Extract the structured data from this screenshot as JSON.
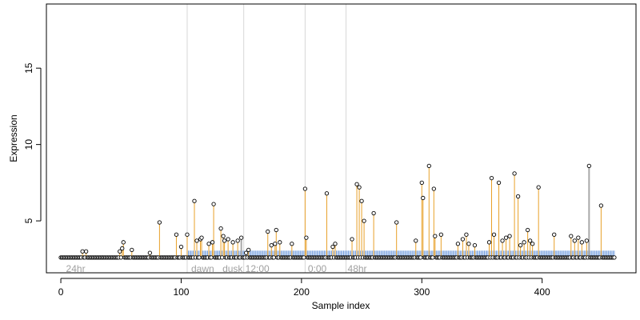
{
  "chart_data": {
    "type": "scatter",
    "title": "",
    "xlabel": "Sample index",
    "ylabel": "Expression",
    "xlim": [
      -12,
      478
    ],
    "ylim": [
      1.6,
      19.2
    ],
    "xticks": [
      "0",
      "100",
      "200",
      "300",
      "400"
    ],
    "yticks": [
      "5",
      "10",
      "15"
    ],
    "baseline": 2.6,
    "region_boundaries": [
      105,
      152,
      203,
      237
    ],
    "region_labels": [
      {
        "x": 3,
        "text": "24hr"
      },
      {
        "x": 107,
        "text": "dawn"
      },
      {
        "x": 133,
        "text": "dusk"
      },
      {
        "x": 152,
        "text": "12:00"
      },
      {
        "x": 204,
        "text": "0:00"
      },
      {
        "x": 237,
        "text": "48hr"
      }
    ],
    "series": [
      {
        "values": [
          [
            18,
            3.0
          ],
          [
            21,
            3.0
          ],
          [
            49,
            3.0
          ],
          [
            51,
            3.2
          ],
          [
            52,
            3.6
          ],
          [
            59,
            3.1
          ],
          [
            74,
            2.9
          ],
          [
            82,
            4.9
          ],
          [
            96,
            4.1
          ],
          [
            100,
            3.3
          ],
          [
            105,
            4.1
          ],
          [
            111,
            6.3
          ],
          [
            113,
            3.7
          ],
          [
            116,
            3.8
          ],
          [
            117,
            3.9
          ],
          [
            123,
            3.5
          ],
          [
            126,
            3.6
          ],
          [
            127,
            6.1
          ],
          [
            133,
            4.5
          ],
          [
            135,
            4.0
          ],
          [
            136,
            3.7
          ],
          [
            139,
            3.8
          ],
          [
            143,
            3.6
          ],
          [
            147,
            3.7
          ],
          [
            150,
            3.9
          ],
          [
            154,
            2.9
          ],
          [
            156,
            3.1
          ],
          [
            172,
            4.3
          ],
          [
            175,
            3.4
          ],
          [
            178,
            3.5
          ],
          [
            179,
            4.4
          ],
          [
            182,
            3.6
          ],
          [
            192,
            3.5
          ],
          [
            203,
            7.1
          ],
          [
            204,
            3.9
          ],
          [
            221,
            6.8
          ],
          [
            226,
            3.3
          ],
          [
            228,
            3.5
          ],
          [
            242,
            3.8
          ],
          [
            246,
            7.4
          ],
          [
            248,
            7.2
          ],
          [
            250,
            6.3
          ],
          [
            252,
            5.0
          ],
          [
            260,
            5.5
          ],
          [
            279,
            4.9
          ],
          [
            295,
            3.7
          ],
          [
            300,
            7.5
          ],
          [
            301,
            6.5
          ],
          [
            306,
            8.6
          ],
          [
            310,
            7.1
          ],
          [
            311,
            4.0
          ],
          [
            316,
            4.1
          ],
          [
            330,
            3.5
          ],
          [
            334,
            3.8
          ],
          [
            337,
            4.1
          ],
          [
            339,
            3.5
          ],
          [
            344,
            3.4
          ],
          [
            356,
            3.6
          ],
          [
            358,
            7.8
          ],
          [
            360,
            4.1
          ],
          [
            364,
            7.5
          ],
          [
            367,
            3.7
          ],
          [
            370,
            3.9
          ],
          [
            373,
            4.0
          ],
          [
            377,
            8.1
          ],
          [
            380,
            6.6
          ],
          [
            382,
            3.4
          ],
          [
            385,
            3.6
          ],
          [
            388,
            4.4
          ],
          [
            390,
            3.7
          ],
          [
            392,
            3.5
          ],
          [
            397,
            7.2
          ],
          [
            410,
            4.1
          ],
          [
            424,
            4.0
          ],
          [
            427,
            3.7
          ],
          [
            430,
            3.9
          ],
          [
            433,
            3.6
          ],
          [
            437,
            3.7
          ],
          [
            439,
            8.6
          ],
          [
            449,
            6.0
          ]
        ]
      }
    ]
  }
}
